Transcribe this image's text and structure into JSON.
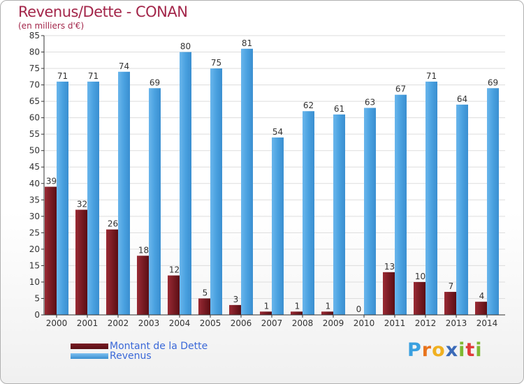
{
  "title": "Revenus/Dette - CONAN",
  "subtitle": "(en milliers d'€)",
  "brand": {
    "letters": [
      "P",
      "r",
      "o",
      "x",
      "i",
      "t",
      "i"
    ],
    "colors": [
      "#3aa0e0",
      "#e8731c",
      "#f0b020",
      "#3a6ab8",
      "#7fb832",
      "#e03a3a",
      "#7fb832"
    ]
  },
  "colors": {
    "dette": "#7a1c24",
    "revenus": "#4aa1e0",
    "axis": "#333333",
    "grid": "#dddddd"
  },
  "chart_data": {
    "type": "bar",
    "categories": [
      "2000",
      "2001",
      "2002",
      "2003",
      "2004",
      "2005",
      "2006",
      "2007",
      "2008",
      "2009",
      "2010",
      "2011",
      "2012",
      "2013",
      "2014"
    ],
    "series": [
      {
        "name": "Montant de la Dette",
        "values": [
          39,
          32,
          26,
          18,
          12,
          5,
          3,
          1,
          1,
          1,
          0,
          13,
          10,
          7,
          4
        ]
      },
      {
        "name": "Revenus",
        "values": [
          71,
          71,
          74,
          69,
          80,
          75,
          81,
          54,
          62,
          61,
          63,
          67,
          71,
          64,
          69
        ]
      }
    ],
    "ylim": [
      0,
      85
    ],
    "yticks": [
      0,
      5,
      10,
      15,
      20,
      25,
      30,
      35,
      40,
      45,
      50,
      55,
      60,
      65,
      70,
      75,
      80,
      85
    ],
    "legend_position": "bottom-left"
  }
}
